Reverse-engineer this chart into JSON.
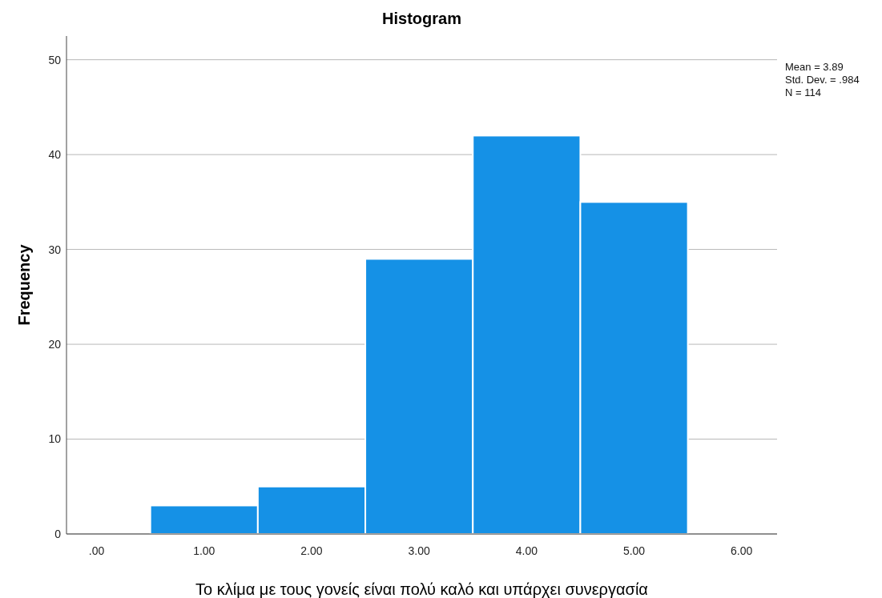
{
  "chart_data": {
    "type": "histogram",
    "title": "Histogram",
    "xlabel": "Το κλίμα με τους γονείς είναι πολύ καλό και υπάρχει συνεργασία",
    "ylabel": "Frequency",
    "bins": [
      0.5,
      1.5,
      2.5,
      3.5,
      4.5,
      5.5
    ],
    "values": [
      3,
      5,
      29,
      42,
      35
    ],
    "color": "#1591e6",
    "xlim": [
      -0.28,
      6.33
    ],
    "xticks": [
      {
        "value": 0,
        "label": ".00"
      },
      {
        "value": 1,
        "label": "1.00"
      },
      {
        "value": 2,
        "label": "2.00"
      },
      {
        "value": 3,
        "label": "3.00"
      },
      {
        "value": 4,
        "label": "4.00"
      },
      {
        "value": 5,
        "label": "5.00"
      },
      {
        "value": 6,
        "label": "6.00"
      }
    ],
    "ylim": [
      0,
      52.5
    ],
    "yticks": [
      0,
      10,
      20,
      30,
      40,
      50
    ],
    "grid": "y",
    "annotations": [
      "Mean = 3.89",
      "Std. Dev. = .984",
      "N = 114"
    ]
  }
}
